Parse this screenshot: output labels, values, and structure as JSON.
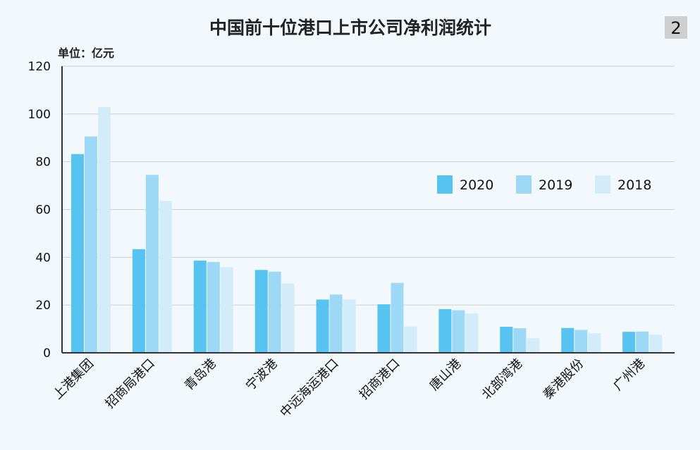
{
  "badge": "2",
  "colors": {
    "background": "#f2f8fb",
    "badge_bg": "#cfcfcf",
    "grid": "#d0d0d0",
    "axis": "#333333"
  },
  "chart_data": {
    "type": "bar",
    "title": "中国前十位港口上市公司净利润统计",
    "unit_label": "单位：亿元",
    "xlabel": "",
    "ylabel": "",
    "ylim": [
      0,
      120
    ],
    "yticks": [
      0,
      20,
      40,
      60,
      80,
      100,
      120
    ],
    "grid": true,
    "legend_position": "right",
    "categories": [
      "上港集团",
      "招商局港口",
      "青岛港",
      "宁波港",
      "中远海运港口",
      "招商港口",
      "唐山港",
      "北部湾港",
      "秦港股份",
      "广州港"
    ],
    "series": [
      {
        "name": "2020",
        "color": "#56c3f0",
        "values": [
          83.2,
          43.4,
          38.6,
          34.7,
          22.3,
          20.3,
          18.3,
          10.9,
          10.4,
          8.8
        ]
      },
      {
        "name": "2019",
        "color": "#9ed8f7",
        "values": [
          90.6,
          74.5,
          38.0,
          34.0,
          24.4,
          29.3,
          17.8,
          10.3,
          9.6,
          8.9
        ]
      },
      {
        "name": "2018",
        "color": "#d3ecfa",
        "values": [
          102.9,
          63.6,
          35.8,
          29.1,
          22.4,
          11.0,
          16.5,
          6.1,
          8.2,
          7.6
        ]
      }
    ]
  }
}
